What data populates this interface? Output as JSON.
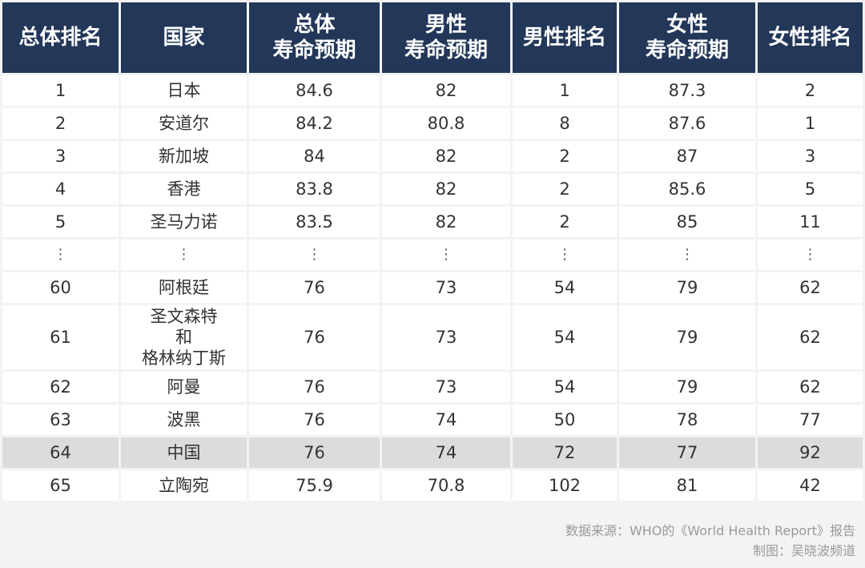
{
  "chart_data": {
    "type": "table",
    "columns": [
      {
        "key": "overall_rank",
        "lines": [
          "总体排名"
        ]
      },
      {
        "key": "country",
        "lines": [
          "国家"
        ]
      },
      {
        "key": "overall_le",
        "lines": [
          "总体",
          "寿命预期"
        ]
      },
      {
        "key": "male_le",
        "lines": [
          "男性",
          "寿命预期"
        ]
      },
      {
        "key": "male_rank",
        "lines": [
          "男性排名"
        ]
      },
      {
        "key": "female_le",
        "lines": [
          "女性",
          "寿命预期"
        ]
      },
      {
        "key": "female_rank",
        "lines": [
          "女性排名"
        ]
      }
    ],
    "rows": [
      {
        "cells": [
          [
            "1"
          ],
          [
            "日本"
          ],
          [
            "84.6"
          ],
          [
            "82"
          ],
          [
            "1"
          ],
          [
            "87.3"
          ],
          [
            "2"
          ]
        ]
      },
      {
        "cells": [
          [
            "2"
          ],
          [
            "安道尔"
          ],
          [
            "84.2"
          ],
          [
            "80.8"
          ],
          [
            "8"
          ],
          [
            "87.6"
          ],
          [
            "1"
          ]
        ]
      },
      {
        "cells": [
          [
            "3"
          ],
          [
            "新加坡"
          ],
          [
            "84"
          ],
          [
            "82"
          ],
          [
            "2"
          ],
          [
            "87"
          ],
          [
            "3"
          ]
        ]
      },
      {
        "cells": [
          [
            "4"
          ],
          [
            "香港"
          ],
          [
            "83.8"
          ],
          [
            "82"
          ],
          [
            "2"
          ],
          [
            "85.6"
          ],
          [
            "5"
          ]
        ]
      },
      {
        "cells": [
          [
            "5"
          ],
          [
            "圣马力诺"
          ],
          [
            "83.5"
          ],
          [
            "82"
          ],
          [
            "2"
          ],
          [
            "85"
          ],
          [
            "11"
          ]
        ]
      },
      {
        "ellipsis": true,
        "cells": [
          [
            "⋮"
          ],
          [
            "⋮"
          ],
          [
            "⋮"
          ],
          [
            "⋮"
          ],
          [
            "⋮"
          ],
          [
            "⋮"
          ],
          [
            "⋮"
          ]
        ]
      },
      {
        "cells": [
          [
            "60"
          ],
          [
            "阿根廷"
          ],
          [
            "76"
          ],
          [
            "73"
          ],
          [
            "54"
          ],
          [
            "79"
          ],
          [
            "62"
          ]
        ]
      },
      {
        "tall": true,
        "cells": [
          [
            "61"
          ],
          [
            "圣文森特",
            "和",
            "格林纳丁斯"
          ],
          [
            "76"
          ],
          [
            "73"
          ],
          [
            "54"
          ],
          [
            "79"
          ],
          [
            "62"
          ]
        ]
      },
      {
        "cells": [
          [
            "62"
          ],
          [
            "阿曼"
          ],
          [
            "76"
          ],
          [
            "73"
          ],
          [
            "54"
          ],
          [
            "79"
          ],
          [
            "62"
          ]
        ]
      },
      {
        "cells": [
          [
            "63"
          ],
          [
            "波黑"
          ],
          [
            "76"
          ],
          [
            "74"
          ],
          [
            "50"
          ],
          [
            "78"
          ],
          [
            "77"
          ]
        ]
      },
      {
        "highlight": true,
        "cells": [
          [
            "64"
          ],
          [
            "中国"
          ],
          [
            "76"
          ],
          [
            "74"
          ],
          [
            "72"
          ],
          [
            "77"
          ],
          [
            "92"
          ]
        ]
      },
      {
        "cells": [
          [
            "65"
          ],
          [
            "立陶宛"
          ],
          [
            "75.9"
          ],
          [
            "70.8"
          ],
          [
            "102"
          ],
          [
            "81"
          ],
          [
            "42"
          ]
        ]
      }
    ]
  },
  "footer": {
    "source": "数据来源：WHO的《World Health Report》报告",
    "credit": "制图：吴晓波频道"
  },
  "colors": {
    "header_bg": "#233759",
    "highlight_bg": "#dcdcdc",
    "page_bg": "#f3f3f3"
  }
}
